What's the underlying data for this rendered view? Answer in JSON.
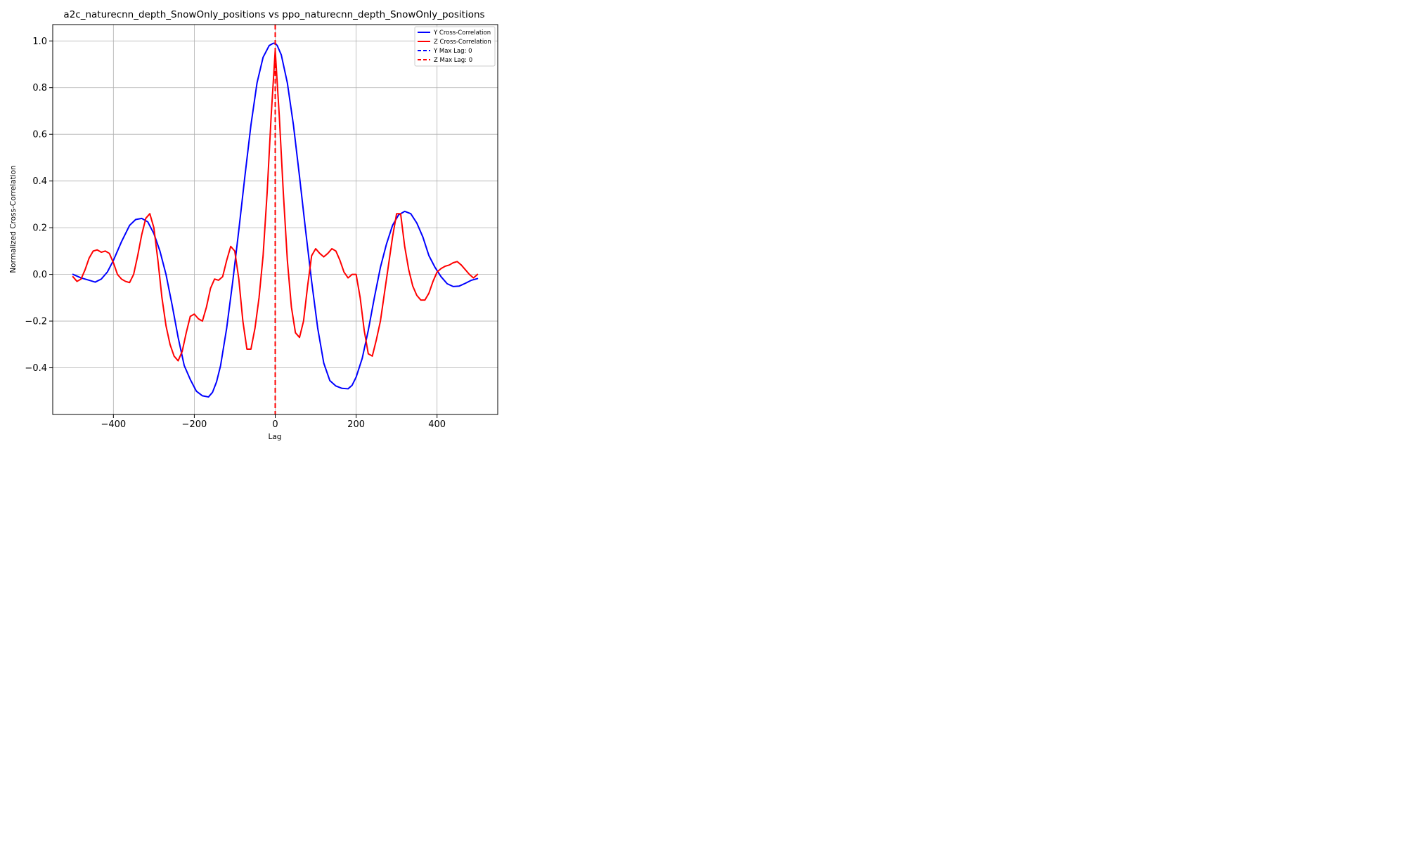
{
  "chart_data": {
    "type": "line",
    "title": "a2c_naturecnn_depth_SnowOnly_positions vs ppo_naturecnn_depth_SnowOnly_positions",
    "xlabel": "Lag",
    "ylabel": "Normalized Cross-Correlation",
    "xlim": [
      -550,
      550
    ],
    "ylim": [
      -0.6,
      1.07
    ],
    "x_ticks": [
      -400,
      -200,
      0,
      200,
      400
    ],
    "x_tick_labels": [
      "−400",
      "−200",
      "0",
      "200",
      "400"
    ],
    "y_ticks": [
      -0.4,
      -0.2,
      0.0,
      0.2,
      0.4,
      0.6,
      0.8,
      1.0
    ],
    "y_tick_labels": [
      "−0.4",
      "−0.2",
      "0.0",
      "0.2",
      "0.4",
      "0.6",
      "0.8",
      "1.0"
    ],
    "grid": true,
    "legend_position": "upper right",
    "series": [
      {
        "name": "Y Cross-Correlation",
        "color": "#0000ff",
        "style": "solid",
        "x": [
          -500,
          -480,
          -460,
          -445,
          -430,
          -415,
          -400,
          -380,
          -360,
          -345,
          -330,
          -315,
          -300,
          -285,
          -270,
          -255,
          -240,
          -225,
          -210,
          -195,
          -180,
          -165,
          -155,
          -145,
          -135,
          -120,
          -105,
          -90,
          -75,
          -60,
          -45,
          -30,
          -15,
          -5,
          0,
          5,
          15,
          30,
          45,
          60,
          75,
          90,
          105,
          120,
          135,
          150,
          165,
          180,
          190,
          200,
          215,
          230,
          245,
          260,
          275,
          290,
          305,
          320,
          335,
          350,
          365,
          380,
          395,
          410,
          425,
          440,
          455,
          470,
          485,
          500
        ],
        "values": [
          0.0,
          -0.015,
          -0.025,
          -0.033,
          -0.02,
          0.01,
          0.06,
          0.14,
          0.21,
          0.235,
          0.24,
          0.225,
          0.175,
          0.1,
          0.0,
          -0.13,
          -0.27,
          -0.39,
          -0.45,
          -0.5,
          -0.52,
          -0.525,
          -0.505,
          -0.46,
          -0.39,
          -0.23,
          -0.03,
          0.19,
          0.42,
          0.64,
          0.82,
          0.93,
          0.98,
          0.99,
          0.99,
          0.98,
          0.94,
          0.82,
          0.64,
          0.42,
          0.19,
          -0.03,
          -0.23,
          -0.38,
          -0.455,
          -0.478,
          -0.488,
          -0.49,
          -0.475,
          -0.44,
          -0.36,
          -0.24,
          -0.1,
          0.03,
          0.13,
          0.21,
          0.255,
          0.27,
          0.26,
          0.22,
          0.16,
          0.08,
          0.03,
          -0.01,
          -0.04,
          -0.052,
          -0.05,
          -0.038,
          -0.025,
          -0.018
        ]
      },
      {
        "name": "Z Cross-Correlation",
        "color": "#ff0000",
        "style": "solid",
        "x": [
          -500,
          -490,
          -480,
          -470,
          -460,
          -450,
          -440,
          -430,
          -420,
          -410,
          -400,
          -390,
          -380,
          -370,
          -360,
          -350,
          -340,
          -330,
          -320,
          -310,
          -300,
          -290,
          -280,
          -270,
          -260,
          -250,
          -240,
          -230,
          -220,
          -210,
          -200,
          -190,
          -180,
          -170,
          -160,
          -150,
          -140,
          -130,
          -120,
          -110,
          -100,
          -90,
          -80,
          -70,
          -60,
          -50,
          -40,
          -30,
          -20,
          -10,
          0,
          10,
          20,
          30,
          40,
          50,
          60,
          70,
          80,
          90,
          100,
          110,
          120,
          130,
          140,
          150,
          160,
          170,
          180,
          190,
          200,
          210,
          220,
          230,
          240,
          250,
          260,
          270,
          280,
          290,
          300,
          310,
          320,
          330,
          340,
          350,
          360,
          370,
          380,
          390,
          400,
          410,
          420,
          430,
          440,
          450,
          460,
          470,
          480,
          490,
          500
        ],
        "values": [
          -0.01,
          -0.03,
          -0.02,
          0.02,
          0.07,
          0.1,
          0.105,
          0.095,
          0.1,
          0.09,
          0.05,
          0.0,
          -0.02,
          -0.03,
          -0.035,
          0.0,
          0.08,
          0.17,
          0.24,
          0.26,
          0.2,
          0.06,
          -0.1,
          -0.22,
          -0.3,
          -0.35,
          -0.37,
          -0.33,
          -0.25,
          -0.18,
          -0.17,
          -0.19,
          -0.2,
          -0.14,
          -0.06,
          -0.02,
          -0.025,
          -0.01,
          0.06,
          0.12,
          0.1,
          -0.02,
          -0.2,
          -0.32,
          -0.32,
          -0.23,
          -0.1,
          0.08,
          0.35,
          0.68,
          0.96,
          0.68,
          0.35,
          0.06,
          -0.14,
          -0.25,
          -0.27,
          -0.2,
          -0.05,
          0.08,
          0.11,
          0.09,
          0.075,
          0.09,
          0.11,
          0.1,
          0.06,
          0.01,
          -0.015,
          0.0,
          0.0,
          -0.1,
          -0.24,
          -0.34,
          -0.35,
          -0.28,
          -0.2,
          -0.08,
          0.04,
          0.16,
          0.26,
          0.26,
          0.12,
          0.02,
          -0.05,
          -0.09,
          -0.11,
          -0.11,
          -0.08,
          -0.03,
          0.01,
          0.025,
          0.035,
          0.04,
          0.05,
          0.055,
          0.04,
          0.02,
          0.0,
          -0.015,
          0.0
        ]
      }
    ],
    "vlines": [
      {
        "name": "Y Max Lag: 0",
        "x": 0,
        "color": "#0000ff",
        "style": "dashed"
      },
      {
        "name": "Z Max Lag: 0",
        "x": 0,
        "color": "#ff0000",
        "style": "dashed"
      }
    ]
  }
}
